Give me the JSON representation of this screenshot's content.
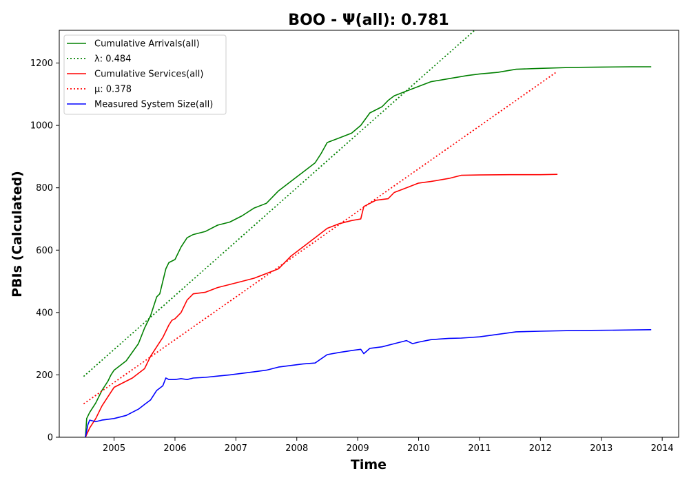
{
  "chart_data": {
    "type": "line",
    "title": "BOO -  Ψ(all): 0.781",
    "xlabel": "Time",
    "ylabel": "PBIs (Calculated)",
    "xlim": [
      2004.1,
      2014.27
    ],
    "ylim": [
      0,
      1305
    ],
    "x_ticks": [
      2005,
      2006,
      2007,
      2008,
      2009,
      2010,
      2011,
      2012,
      2013,
      2014
    ],
    "y_ticks": [
      0,
      200,
      400,
      600,
      800,
      1000,
      1200
    ],
    "grid": false,
    "legend_position": "upper-left",
    "series": [
      {
        "name": "Cumulative Arrivals(all)",
        "style": "solid",
        "color": "#008000",
        "x": [
          2004.53,
          2004.55,
          2004.6,
          2004.7,
          2004.8,
          2004.9,
          2004.95,
          2005.0,
          2005.2,
          2005.4,
          2005.5,
          2005.6,
          2005.7,
          2005.75,
          2005.8,
          2005.85,
          2005.9,
          2006.0,
          2006.1,
          2006.2,
          2006.3,
          2006.5,
          2006.7,
          2006.9,
          2007.1,
          2007.3,
          2007.5,
          2007.7,
          2007.9,
          2008.1,
          2008.3,
          2008.4,
          2008.5,
          2008.7,
          2008.9,
          2009.05,
          2009.2,
          2009.4,
          2009.5,
          2009.6,
          2009.8,
          2010.0,
          2010.2,
          2010.5,
          2010.8,
          2011.0,
          2011.3,
          2011.6,
          2012.0,
          2012.5,
          2013.0,
          2013.5,
          2013.82
        ],
        "y": [
          0,
          60,
          80,
          110,
          150,
          180,
          200,
          215,
          245,
          300,
          350,
          390,
          450,
          460,
          500,
          540,
          560,
          570,
          610,
          640,
          650,
          660,
          680,
          690,
          710,
          735,
          750,
          790,
          820,
          850,
          880,
          910,
          945,
          960,
          975,
          1000,
          1040,
          1060,
          1080,
          1095,
          1110,
          1125,
          1140,
          1150,
          1160,
          1165,
          1170,
          1180,
          1183,
          1186,
          1187,
          1188,
          1188
        ]
      },
      {
        "name": "λ: 0.484",
        "style": "dotted",
        "color": "#008000",
        "x": [
          2004.5,
          2010.92
        ],
        "y": [
          195,
          1305
        ]
      },
      {
        "name": "Cumulative Services(all)",
        "style": "solid",
        "color": "#ff0000",
        "x": [
          2004.53,
          2004.6,
          2004.7,
          2004.8,
          2004.9,
          2005.0,
          2005.1,
          2005.3,
          2005.5,
          2005.6,
          2005.7,
          2005.8,
          2005.9,
          2005.95,
          2006.0,
          2006.1,
          2006.2,
          2006.3,
          2006.5,
          2006.7,
          2006.9,
          2007.1,
          2007.3,
          2007.5,
          2007.7,
          2007.8,
          2007.9,
          2008.1,
          2008.3,
          2008.5,
          2008.7,
          2008.9,
          2009.05,
          2009.1,
          2009.3,
          2009.5,
          2009.6,
          2009.8,
          2010.0,
          2010.2,
          2010.5,
          2010.7,
          2011.0,
          2011.5,
          2012.0,
          2012.28
        ],
        "y": [
          0,
          30,
          60,
          100,
          130,
          160,
          170,
          190,
          220,
          260,
          290,
          320,
          360,
          375,
          380,
          400,
          440,
          460,
          465,
          480,
          490,
          500,
          510,
          525,
          540,
          560,
          580,
          610,
          640,
          670,
          685,
          695,
          700,
          740,
          760,
          765,
          785,
          800,
          815,
          820,
          830,
          840,
          841,
          842,
          842,
          843
        ]
      },
      {
        "name": "μ: 0.378",
        "style": "dotted",
        "color": "#ff0000",
        "x": [
          2004.5,
          2012.27
        ],
        "y": [
          107,
          1172
        ]
      },
      {
        "name": "Measured System Size(all)",
        "style": "solid",
        "color": "#0000ff",
        "x": [
          2004.53,
          2004.57,
          2004.6,
          2004.7,
          2004.8,
          2005.0,
          2005.2,
          2005.4,
          2005.5,
          2005.6,
          2005.7,
          2005.8,
          2005.85,
          2005.9,
          2006.0,
          2006.1,
          2006.2,
          2006.3,
          2006.5,
          2006.7,
          2006.9,
          2007.1,
          2007.3,
          2007.5,
          2007.7,
          2007.9,
          2008.1,
          2008.3,
          2008.5,
          2008.7,
          2008.9,
          2009.05,
          2009.1,
          2009.2,
          2009.4,
          2009.6,
          2009.8,
          2009.9,
          2010.0,
          2010.2,
          2010.5,
          2010.7,
          2011.0,
          2011.3,
          2011.6,
          2012.0,
          2012.5,
          2013.0,
          2013.5,
          2013.82
        ],
        "y": [
          0,
          40,
          55,
          50,
          55,
          60,
          70,
          90,
          105,
          120,
          150,
          165,
          190,
          185,
          185,
          188,
          185,
          190,
          192,
          196,
          200,
          205,
          210,
          215,
          225,
          230,
          235,
          238,
          265,
          272,
          278,
          282,
          268,
          285,
          290,
          300,
          310,
          300,
          305,
          313,
          317,
          318,
          322,
          330,
          338,
          340,
          342,
          343,
          344,
          345
        ]
      }
    ]
  }
}
